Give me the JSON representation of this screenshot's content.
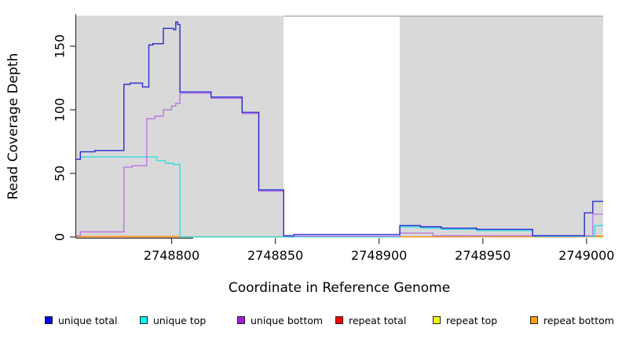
{
  "chart_data": {
    "type": "line",
    "subtype": "step-coverage",
    "xlabel": "Coordinate in Reference Genome",
    "ylabel": "Read Coverage Depth",
    "xlim": [
      2748754,
      2749008
    ],
    "ylim": [
      0,
      174
    ],
    "x_ticks": [
      2748800,
      2748850,
      2748900,
      2748950,
      2749000
    ],
    "y_ticks": [
      0,
      50,
      100,
      150
    ],
    "grid": false,
    "legend_position": "bottom",
    "shaded_regions": [
      {
        "name": "repeat-region-left",
        "x0": 2748754,
        "x1": 2748854,
        "color": "#d9d9d9"
      },
      {
        "name": "repeat-region-right",
        "x0": 2748910,
        "x1": 2749008,
        "color": "#d9d9d9"
      }
    ],
    "colors": {
      "axis": "#333333",
      "top_border": "#a0a0a0",
      "background": "#ffffff"
    },
    "legend": [
      {
        "label": "unique total",
        "color": "#0000f5"
      },
      {
        "label": "unique top",
        "color": "#00f2f2"
      },
      {
        "label": "unique bottom",
        "color": "#a51cd8"
      },
      {
        "label": "repeat total",
        "color": "#f50000"
      },
      {
        "label": "repeat top",
        "color": "#fafa00"
      },
      {
        "label": "repeat bottom",
        "color": "#ffa011"
      }
    ],
    "series": [
      {
        "name": "repeat-top",
        "label": "repeat top",
        "color": "#f2f200",
        "steps": [
          [
            2748754,
            0.15
          ]
        ]
      },
      {
        "name": "repeat-total",
        "label": "repeat total",
        "color": "#e05555",
        "steps": [
          [
            2748754,
            0.2
          ],
          [
            2748926,
            0.8
          ],
          [
            2749003,
            0.5
          ]
        ]
      },
      {
        "name": "repeat-bottom",
        "label": "repeat bottom",
        "color": "#ff9815",
        "steps": [
          [
            2748754,
            0.45
          ],
          [
            2748804,
            0.1
          ],
          [
            2749004,
            0.8
          ]
        ]
      },
      {
        "name": "unique-top",
        "label": "unique top",
        "color": "#30dede",
        "steps": [
          [
            2748754,
            61
          ],
          [
            2748756,
            63
          ],
          [
            2748793,
            60
          ],
          [
            2748797,
            58
          ],
          [
            2748801,
            57
          ],
          [
            2748804,
            0.05
          ],
          [
            2748910,
            8
          ],
          [
            2748920,
            7
          ],
          [
            2748930,
            6
          ],
          [
            2748947,
            5
          ],
          [
            2748974,
            0.5
          ],
          [
            2749004,
            9
          ]
        ]
      },
      {
        "name": "unique-bottom",
        "label": "unique bottom",
        "color": "#b878e0",
        "steps": [
          [
            2748754,
            1
          ],
          [
            2748756,
            4
          ],
          [
            2748777,
            55
          ],
          [
            2748781,
            56
          ],
          [
            2748788,
            93
          ],
          [
            2748792,
            95
          ],
          [
            2748796,
            100
          ],
          [
            2748800,
            103
          ],
          [
            2748802,
            105
          ],
          [
            2748804,
            113
          ],
          [
            2748819,
            109
          ],
          [
            2748834,
            97
          ],
          [
            2748842,
            36
          ],
          [
            2748854,
            0.7
          ],
          [
            2748910,
            3
          ],
          [
            2748926,
            1
          ],
          [
            2749003,
            18
          ]
        ]
      },
      {
        "name": "unique-total",
        "label": "unique total",
        "color": "#2b2bd5",
        "steps": [
          [
            2748754,
            61
          ],
          [
            2748756,
            67
          ],
          [
            2748763,
            68
          ],
          [
            2748777,
            120
          ],
          [
            2748780,
            121
          ],
          [
            2748786,
            118
          ],
          [
            2748789,
            151
          ],
          [
            2748791,
            152
          ],
          [
            2748796,
            164
          ],
          [
            2748801,
            163
          ],
          [
            2748802,
            169
          ],
          [
            2748803,
            167
          ],
          [
            2748804,
            114
          ],
          [
            2748819,
            110
          ],
          [
            2748834,
            98
          ],
          [
            2748842,
            37
          ],
          [
            2748854,
            1
          ],
          [
            2748859,
            2
          ],
          [
            2748910,
            9
          ],
          [
            2748920,
            8
          ],
          [
            2748930,
            7
          ],
          [
            2748947,
            6
          ],
          [
            2748974,
            1
          ],
          [
            2748999,
            19
          ],
          [
            2749003,
            28
          ]
        ]
      }
    ]
  }
}
